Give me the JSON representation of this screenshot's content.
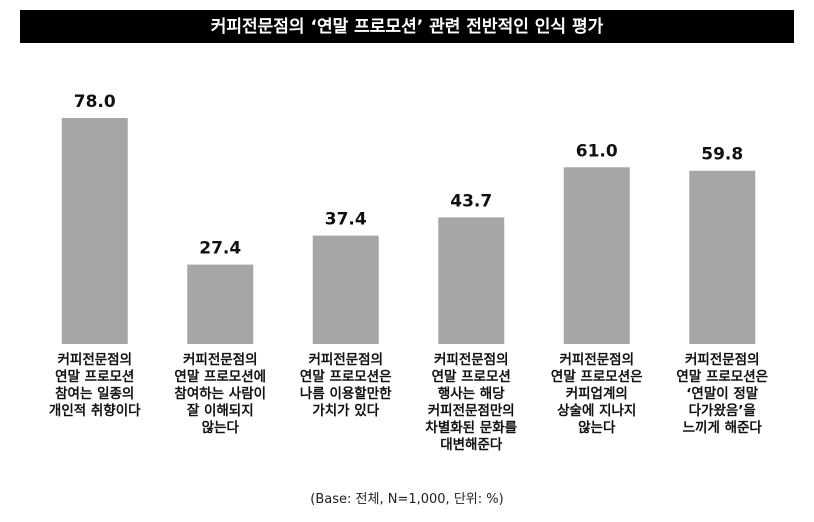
{
  "chart_data": {
    "type": "bar",
    "title": "커피전문점의 ‘연말 프로모션’ 관련 전반적인 인식 평가",
    "categories": [
      "커피전문점의\n연말 프로모션\n참여는 일종의\n개인적 취향이다",
      "커피전문점의\n연말 프로모션에\n참여하는 사람이\n잘 이해되지\n않는다",
      "커피전문점의\n연말 프로모션은\n나름 이용할만한\n가치가 있다",
      "커피전문점의\n연말 프로모션\n행사는 해당\n커피전문점만의\n차별화된 문화를\n대변해준다",
      "커피전문점의\n연말 프로모션은\n커피업계의\n상술에 지나지\n않는다",
      "커피전문점의\n연말 프로모션은\n‘연말이 정말\n다가왔음’을\n느끼게 해준다"
    ],
    "values": [
      78.0,
      27.4,
      37.4,
      43.7,
      61.0,
      59.8
    ],
    "value_labels": [
      "78.0",
      "27.4",
      "37.4",
      "43.7",
      "61.0",
      "59.8"
    ],
    "color": "#a6a6a6",
    "note": "(Base: 전체, N=1,000, 단위: %)"
  }
}
